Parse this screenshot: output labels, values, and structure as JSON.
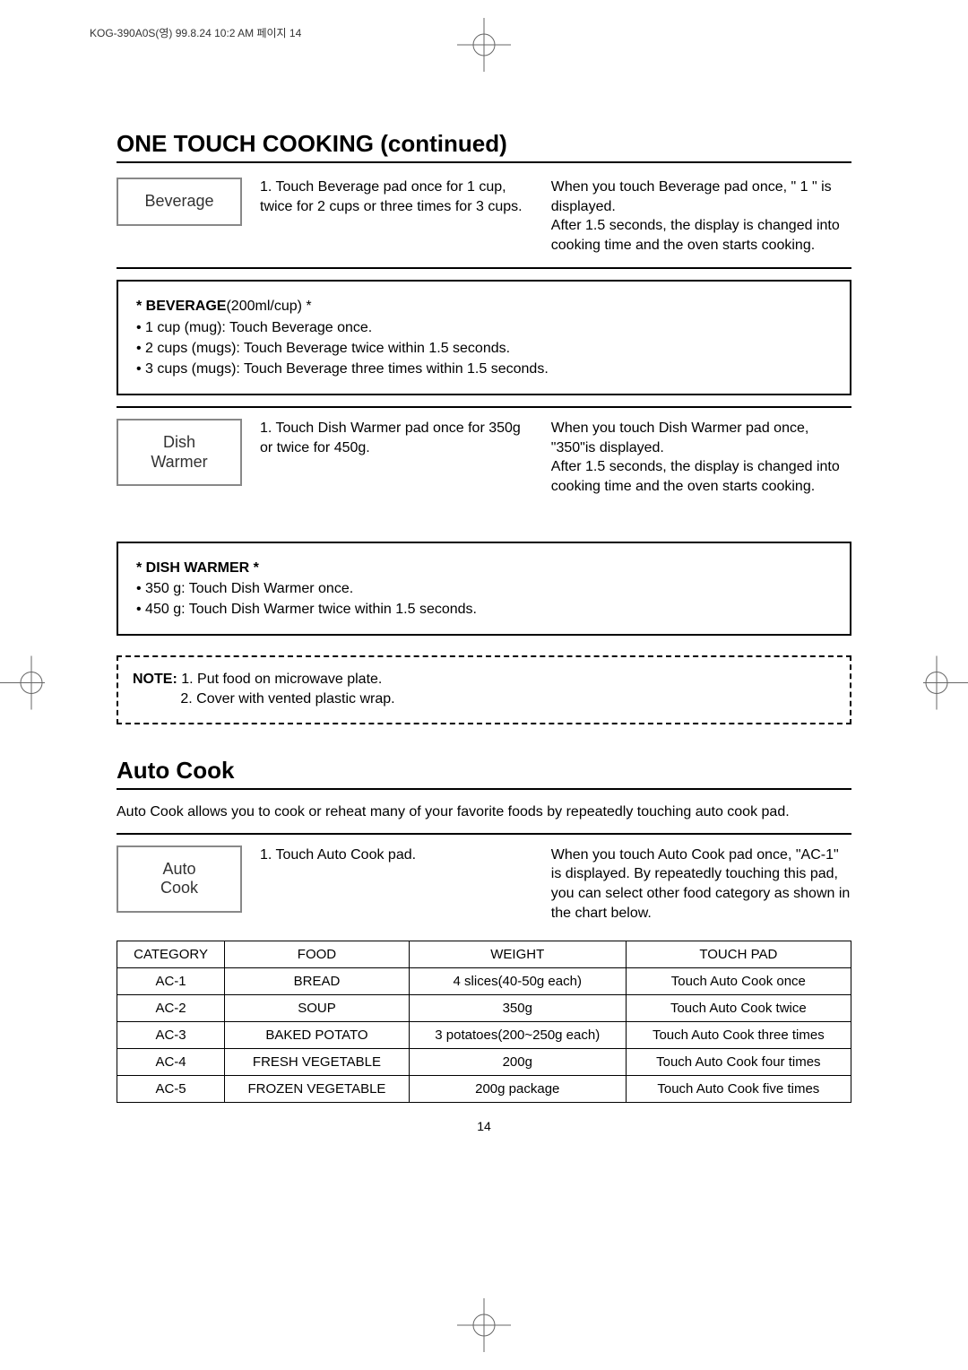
{
  "meta": {
    "header": "KOG-390A0S(영) 99.8.24 10:2 AM 페이지 14",
    "pageNumber": "14"
  },
  "colors": {
    "text": "#000000",
    "border": "#000000",
    "padBorder": "#888888",
    "background": "#ffffff"
  },
  "sections": {
    "oneTouchTitle": "ONE TOUCH COOKING (continued)",
    "autoCookTitle": "Auto Cook",
    "autoCookIntro": "Auto Cook allows you to cook or reheat many of your favorite foods by repeatedly touching auto cook pad."
  },
  "beverage": {
    "padLabel": "Beverage",
    "step": "1. Touch Beverage pad once for 1 cup, twice for 2 cups or three times for 3 cups.",
    "result": "When you touch Beverage pad once, \" 1 \" is displayed.\nAfter 1.5 seconds, the display is changed into cooking time and the oven starts cooking.",
    "boxTitle": "* BEVERAGE",
    "boxTitleSuffix": "(200ml/cup) *",
    "boxLines": [
      "• 1 cup (mug): Touch Beverage once.",
      "• 2 cups (mugs): Touch Beverage twice within 1.5 seconds.",
      "• 3 cups (mugs): Touch Beverage three times within 1.5 seconds."
    ]
  },
  "dishWarmer": {
    "padLabel": "Dish\nWarmer",
    "step": "1. Touch Dish Warmer pad once for 350g or twice for 450g.",
    "result": "When you touch Dish Warmer pad once, \"350\"is displayed.\nAfter 1.5 seconds, the display is changed into cooking time and the oven starts cooking.",
    "boxTitle": "* DISH WARMER *",
    "boxLines": [
      "• 350 g: Touch Dish Warmer once.",
      "• 450 g: Touch Dish Warmer twice within 1.5 seconds."
    ]
  },
  "note": {
    "label": "NOTE:",
    "lines": [
      "1. Put food on microwave plate.",
      "2. Cover with vented plastic wrap."
    ]
  },
  "autoCook": {
    "padLabel": "Auto\nCook",
    "step": "1. Touch Auto Cook pad.",
    "result": "When you touch Auto Cook pad once, \"AC-1\" is displayed. By repeatedly touching this pad, you can select other food category as shown in the chart below.",
    "table": {
      "headers": [
        "CATEGORY",
        "FOOD",
        "WEIGHT",
        "TOUCH PAD"
      ],
      "rows": [
        [
          "AC-1",
          "BREAD",
          "4 slices(40-50g each)",
          "Touch Auto Cook once"
        ],
        [
          "AC-2",
          "SOUP",
          "350g",
          "Touch Auto Cook twice"
        ],
        [
          "AC-3",
          "BAKED POTATO",
          "3 potatoes(200~250g each)",
          "Touch Auto Cook three times"
        ],
        [
          "AC-4",
          "FRESH VEGETABLE",
          "200g",
          "Touch Auto Cook four times"
        ],
        [
          "AC-5",
          "FROZEN VEGETABLE",
          "200g package",
          "Touch Auto Cook five times"
        ]
      ]
    }
  }
}
